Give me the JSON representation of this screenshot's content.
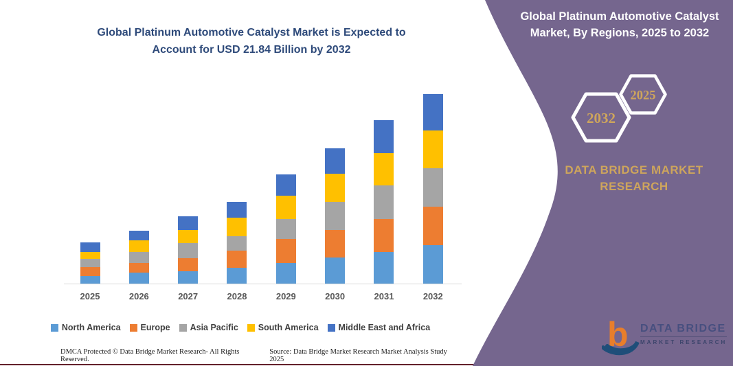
{
  "chart": {
    "title_line1": "Global Platinum Automotive Catalyst Market is Expected to",
    "title_line2": "Account for USD 21.84 Billion by 2032",
    "footer_left": "DMCA Protected © Data Bridge Market Research-  All Rights Reserved.",
    "footer_right": "Source: Data Bridge Market Research  Market Analysis Study 2025"
  },
  "chart_data": {
    "type": "bar",
    "stacked": true,
    "title": "Global Platinum Automotive Catalyst Market is Expected to Account for USD 21.84 Billion by 2032",
    "unit": "USD Billion",
    "categories": [
      "2025",
      "2026",
      "2027",
      "2028",
      "2029",
      "2030",
      "2031",
      "2032"
    ],
    "series": [
      {
        "name": "North America",
        "color": "#5B9BD5",
        "values": [
          0.87,
          1.27,
          1.45,
          1.8,
          2.41,
          3.0,
          3.68,
          4.4
        ]
      },
      {
        "name": "Europe",
        "color": "#ED7D31",
        "values": [
          1.03,
          1.11,
          1.51,
          2.01,
          2.73,
          3.2,
          3.77,
          4.45
        ]
      },
      {
        "name": "Asia Pacific",
        "color": "#A5A5A5",
        "values": [
          0.95,
          1.27,
          1.73,
          1.67,
          2.31,
          3.26,
          3.84,
          4.43
        ]
      },
      {
        "name": "South America",
        "color": "#FFC000",
        "values": [
          0.8,
          1.35,
          1.51,
          2.09,
          2.65,
          3.23,
          3.74,
          4.37
        ]
      },
      {
        "name": "Middle East and Africa",
        "color": "#4472C4",
        "values": [
          1.11,
          1.11,
          1.57,
          1.86,
          2.46,
          2.91,
          3.82,
          4.19
        ]
      }
    ],
    "totals_by_year": [
      4.76,
      6.11,
      7.77,
      9.43,
      12.56,
      15.6,
      18.85,
      21.84
    ],
    "ylim": [
      0,
      22
    ],
    "grid": false,
    "y_axis_visible": false,
    "legend_position": "bottom"
  },
  "right_panel": {
    "bg_color": "#75668E",
    "gold_color": "#CEA55C",
    "title_line1": "Global Platinum Automotive Catalyst",
    "title_line2": "Market, By Regions, 2025 to 2032",
    "hexagons": [
      {
        "label": "2032"
      },
      {
        "label": "2025"
      }
    ],
    "brand_line1": "DATA BRIDGE MARKET",
    "brand_line2": "RESEARCH",
    "logo": {
      "name": "DATA BRIDGE",
      "subtitle": "MARKET RESEARCH"
    }
  }
}
